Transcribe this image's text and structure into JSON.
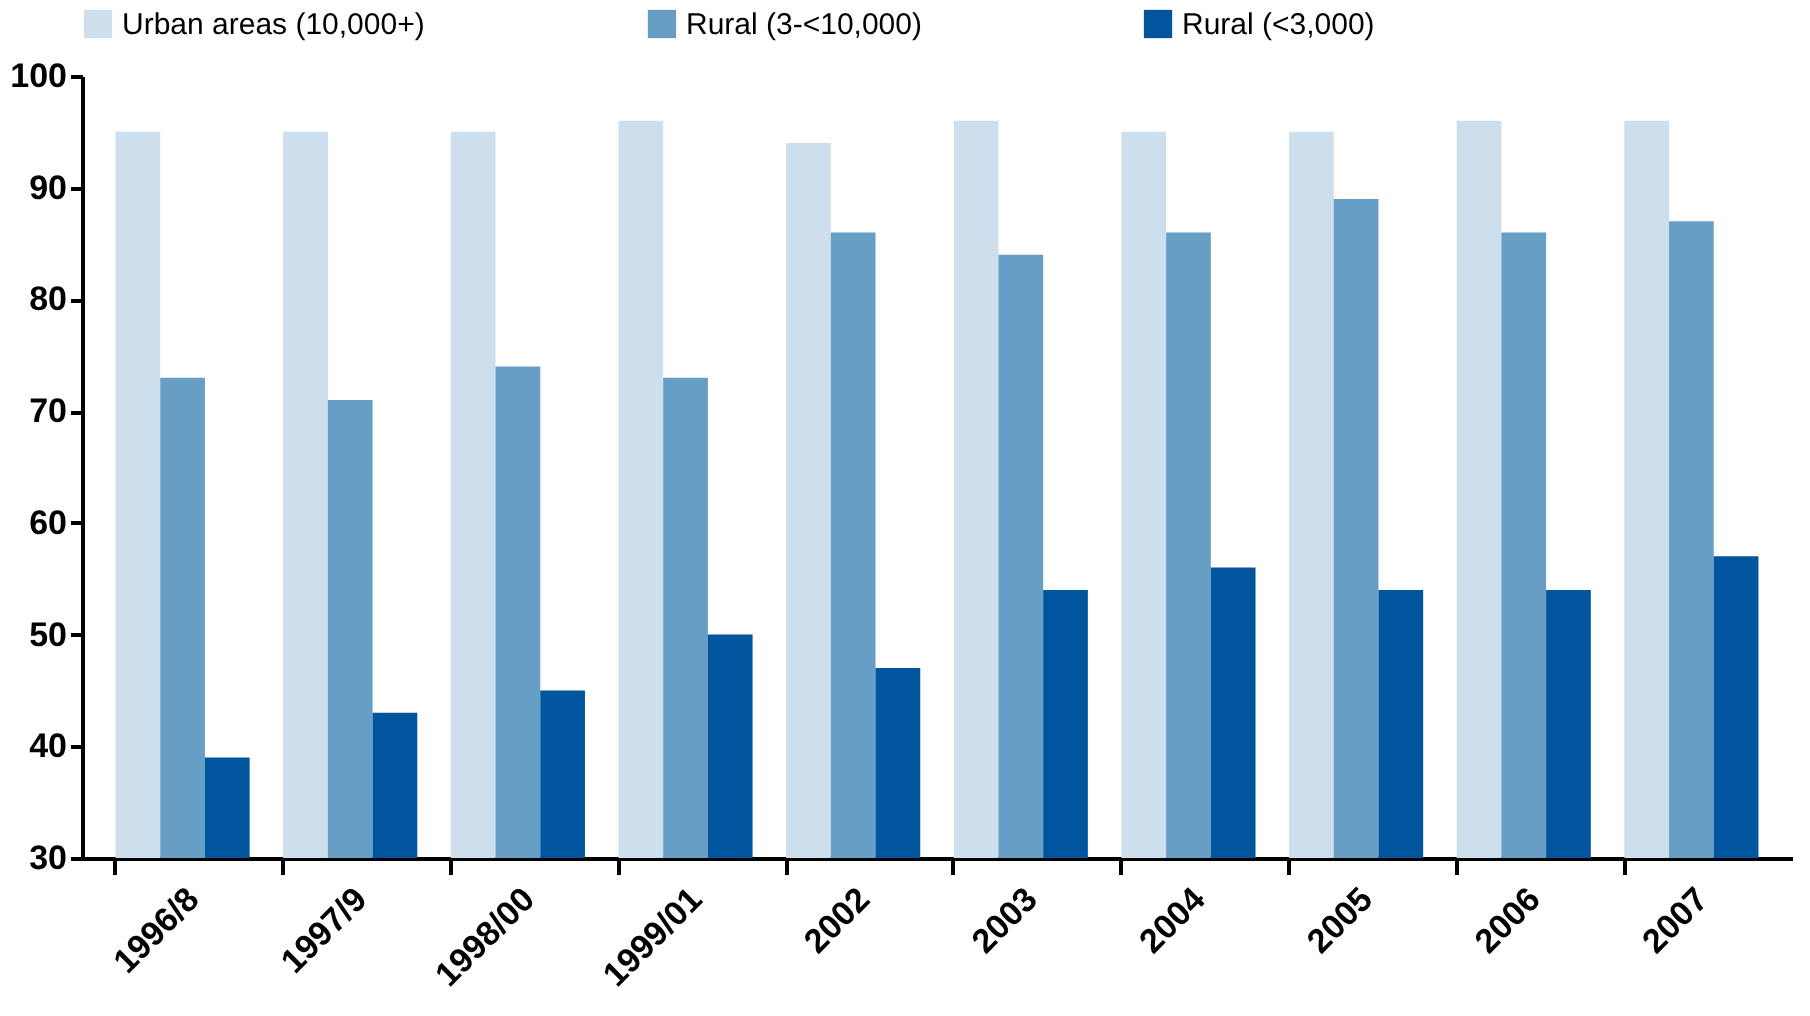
{
  "chart_data": {
    "type": "bar",
    "categories": [
      "1996/8",
      "1997/9",
      "1998/00",
      "1999/01",
      "2002",
      "2003",
      "2004",
      "2005",
      "2006",
      "2007"
    ],
    "series": [
      {
        "name": "Urban areas (10,000+)",
        "color": "#cddeec",
        "values": [
          95,
          95,
          95,
          96,
          94,
          96,
          95,
          95,
          96,
          96
        ]
      },
      {
        "name": "Rural (3-<10,000)",
        "color": "#669ec6",
        "values": [
          73,
          71,
          74,
          73,
          86,
          84,
          86,
          89,
          86,
          87
        ]
      },
      {
        "name": "Rural (<3,000)",
        "color": "#00559f",
        "values": [
          39,
          43,
          45,
          50,
          47,
          54,
          56,
          54,
          54,
          57
        ]
      }
    ],
    "ylim": [
      30,
      100
    ],
    "yticks": [
      30,
      40,
      50,
      60,
      70,
      80,
      90,
      100
    ],
    "grid": false,
    "legend": "top"
  }
}
